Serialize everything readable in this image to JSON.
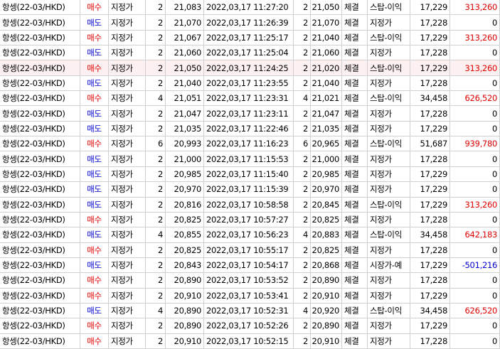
{
  "rows": [
    [
      "항셍(22-03/HKD)",
      "매수",
      "지정가",
      "2",
      "21,083",
      "2022,03,17 11:27:20",
      "2",
      "21,050",
      "체결",
      "스탑-이익",
      "17,229",
      "313,260"
    ],
    [
      "항셍(22-03/HKD)",
      "매도",
      "지정가",
      "2",
      "21,070",
      "2022,03,17 11:26:39",
      "2",
      "21,070",
      "체결",
      "지정가",
      "17,228",
      "0"
    ],
    [
      "항셍(22-03/HKD)",
      "매수",
      "지정가",
      "2",
      "21,067",
      "2022,03,17 11:25:17",
      "2",
      "21,040",
      "체결",
      "스탑-이익",
      "17,229",
      "313,260"
    ],
    [
      "항셍(22-03/HKD)",
      "매도",
      "지정가",
      "2",
      "21,060",
      "2022,03,17 11:25:04",
      "2",
      "21,060",
      "체결",
      "지정가",
      "17,228",
      "0"
    ],
    [
      "항셍(22-03/HKD)",
      "매수",
      "지정가",
      "2",
      "21,050",
      "2022,03,17 11:24:25",
      "2",
      "21,020",
      "체결",
      "스탑-이익",
      "17,229",
      "313,260"
    ],
    [
      "항셍(22-03/HKD)",
      "매도",
      "지정가",
      "2",
      "21,040",
      "2022,03,17 11:23:55",
      "2",
      "21,040",
      "체결",
      "지정가",
      "17,228",
      "0"
    ],
    [
      "항셍(22-03/HKD)",
      "매수",
      "지정가",
      "4",
      "21,051",
      "2022,03,17 11:23:31",
      "4",
      "21,021",
      "체결",
      "스탑-이익",
      "34,458",
      "626,520"
    ],
    [
      "항셍(22-03/HKD)",
      "매도",
      "지정가",
      "2",
      "21,047",
      "2022,03,17 11:23:11",
      "2",
      "21,047",
      "체결",
      "지정가",
      "17,228",
      "0"
    ],
    [
      "항셍(22-03/HKD)",
      "매도",
      "지정가",
      "2",
      "21,035",
      "2022,03,17 11:22:46",
      "2",
      "21,035",
      "체결",
      "지정가",
      "17,229",
      "0"
    ],
    [
      "항셍(22-03/HKD)",
      "매수",
      "지정가",
      "6",
      "20,993",
      "2022,03,17 11:16:23",
      "6",
      "20,965",
      "체결",
      "스탑-이익",
      "51,687",
      "939,780"
    ],
    [
      "항셍(22-03/HKD)",
      "매도",
      "지정가",
      "2",
      "21,000",
      "2022,03,17 11:15:53",
      "2",
      "21,000",
      "체결",
      "지정가",
      "17,228",
      "0"
    ],
    [
      "항셍(22-03/HKD)",
      "매도",
      "지정가",
      "2",
      "20,985",
      "2022,03,17 11:15:40",
      "2",
      "20,985",
      "체결",
      "지정가",
      "17,229",
      "0"
    ],
    [
      "항셍(22-03/HKD)",
      "매도",
      "지정가",
      "2",
      "20,970",
      "2022,03,17 11:15:39",
      "2",
      "20,970",
      "체결",
      "지정가",
      "17,229",
      "0"
    ],
    [
      "항셍(22-03/HKD)",
      "매도",
      "지정가",
      "2",
      "20,816",
      "2022,03,17 10:58:58",
      "2",
      "20,845",
      "체결",
      "스탑-이익",
      "17,229",
      "313,260"
    ],
    [
      "항셍(22-03/HKD)",
      "매수",
      "지정가",
      "2",
      "20,825",
      "2022,03,17 10:57:27",
      "2",
      "20,825",
      "체결",
      "지정가",
      "17,228",
      "0"
    ],
    [
      "항셍(22-03/HKD)",
      "매도",
      "지정가",
      "4",
      "20,855",
      "2022,03,17 10:56:23",
      "4",
      "20,883",
      "체결",
      "스탑-이익",
      "34,458",
      "642,183"
    ],
    [
      "항셍(22-03/HKD)",
      "매수",
      "지정가",
      "2",
      "20,825",
      "2022,03,17 10:55:17",
      "2",
      "20,825",
      "체결",
      "지정가",
      "17,228",
      "0"
    ],
    [
      "항셍(22-03/HKD)",
      "매도",
      "지정가",
      "2",
      "20,843",
      "2022,03,17 10:54:17",
      "2",
      "20,868",
      "체결",
      "시장가-예",
      "17,229",
      "-501,216"
    ],
    [
      "항셍(22-03/HKD)",
      "매수",
      "지정가",
      "2",
      "20,890",
      "2022,03,17 10:53:52",
      "2",
      "20,890",
      "체결",
      "지정가",
      "17,228",
      "0"
    ],
    [
      "항셍(22-03/HKD)",
      "매수",
      "지정가",
      "2",
      "20,910",
      "2022,03,17 10:53:41",
      "2",
      "20,910",
      "체결",
      "지정가",
      "17,229",
      "0"
    ],
    [
      "항셍(22-03/HKD)",
      "매도",
      "지정가",
      "4",
      "20,890",
      "2022,03,17 10:52:31",
      "4",
      "20,920",
      "체결",
      "스탑-이익",
      "34,458",
      "626,520"
    ],
    [
      "항셍(22-03/HKD)",
      "매수",
      "지정가",
      "2",
      "20,890",
      "2022,03,17 10:52:26",
      "2",
      "20,890",
      "체결",
      "지정가",
      "17,229",
      "0"
    ],
    [
      "항셍(22-03/HKD)",
      "매수",
      "지정가",
      "2",
      "20,910",
      "2022,03,17 10:52:15",
      "2",
      "20,910",
      "체결",
      "지정가",
      "17,228",
      "0"
    ]
  ]
}
